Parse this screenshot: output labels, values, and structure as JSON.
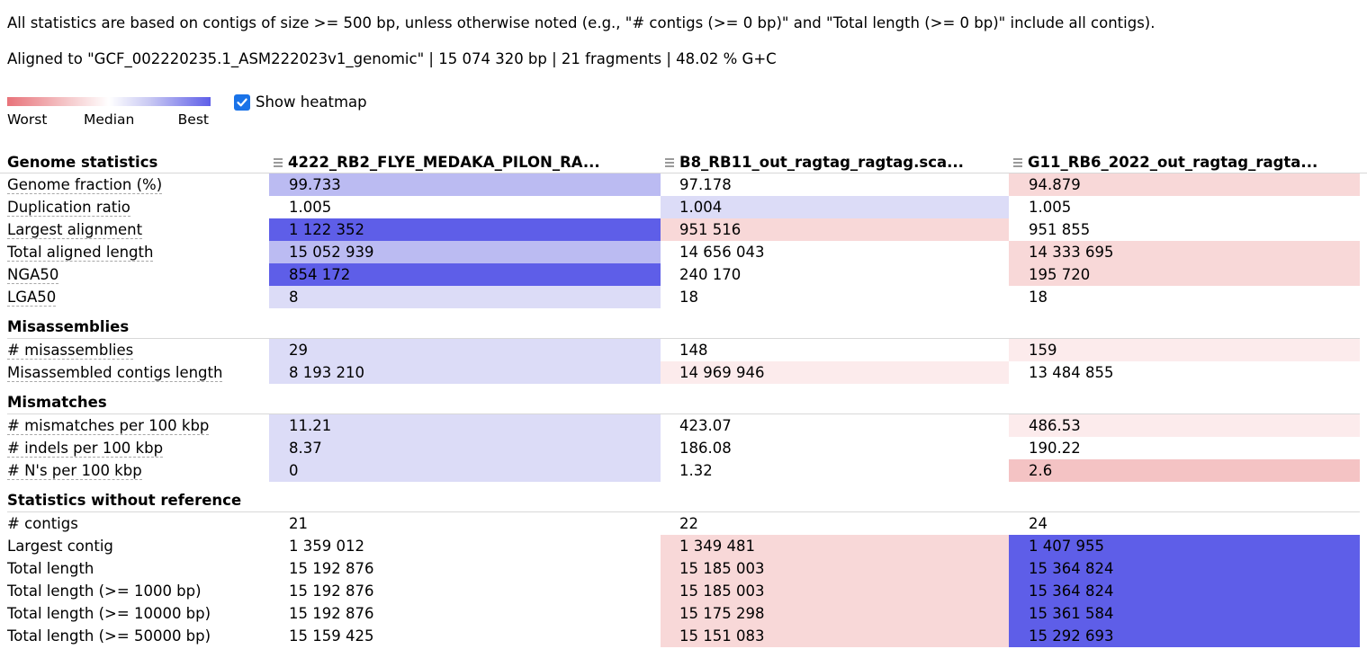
{
  "notes": {
    "stats_note": "All statistics are based on contigs of size >= 500 bp, unless otherwise noted (e.g., \"# contigs (>= 0 bp)\" and \"Total length (>= 0 bp)\" include all contigs).",
    "aligned_to": "Aligned to \"GCF_002220235.1_ASM222023v1_genomic\" | 15 074 320 bp | 21 fragments | 48.02 % G+C"
  },
  "legend": {
    "worst": "Worst",
    "median": "Median",
    "best": "Best"
  },
  "heatmap_toggle": {
    "label": "Show heatmap",
    "checked": true
  },
  "colors": {
    "best": "#5e5ee8",
    "good": "#bbbbf2",
    "light_good": "#dcdcf7",
    "light_bad": "#fcebec",
    "bad": "#f8d8d8",
    "worse": "#f4c3c4",
    "neutral": "#ffffff"
  },
  "columns": [
    "4222_RB2_FLYE_MEDAKA_PILON_RA...",
    "B8_RB11_out_ragtag_ragtag.sca...",
    "G11_RB6_2022_out_ragtag_ragta..."
  ],
  "sections": [
    {
      "title": "Genome statistics",
      "rows": [
        {
          "label": "Genome fraction (%)",
          "values": [
            "99.733",
            "97.178",
            "94.879"
          ],
          "heat": [
            "good",
            "neutral",
            "bad"
          ]
        },
        {
          "label": "Duplication ratio",
          "values": [
            "1.005",
            "1.004",
            "1.005"
          ],
          "heat": [
            "neutral",
            "light_good",
            "neutral"
          ]
        },
        {
          "label": "Largest alignment",
          "values": [
            "1 122 352",
            "951 516",
            "951 855"
          ],
          "heat": [
            "best",
            "bad",
            "neutral"
          ]
        },
        {
          "label": "Total aligned length",
          "values": [
            "15 052 939",
            "14 656 043",
            "14 333 695"
          ],
          "heat": [
            "good",
            "neutral",
            "bad"
          ]
        },
        {
          "label": "NGA50",
          "values": [
            "854 172",
            "240 170",
            "195 720"
          ],
          "heat": [
            "best",
            "neutral",
            "bad"
          ]
        },
        {
          "label": "LGA50",
          "values": [
            "8",
            "18",
            "18"
          ],
          "heat": [
            "light_good",
            "neutral",
            "neutral"
          ]
        }
      ]
    },
    {
      "title": "Misassemblies",
      "rows": [
        {
          "label": "# misassemblies",
          "values": [
            "29",
            "148",
            "159"
          ],
          "heat": [
            "light_good",
            "neutral",
            "light_bad"
          ]
        },
        {
          "label": "Misassembled contigs length",
          "values": [
            "8 193 210",
            "14 969 946",
            "13 484 855"
          ],
          "heat": [
            "light_good",
            "light_bad",
            "neutral"
          ]
        }
      ]
    },
    {
      "title": "Mismatches",
      "rows": [
        {
          "label": "# mismatches per 100 kbp",
          "values": [
            "11.21",
            "423.07",
            "486.53"
          ],
          "heat": [
            "light_good",
            "neutral",
            "light_bad"
          ]
        },
        {
          "label": "# indels per 100 kbp",
          "values": [
            "8.37",
            "186.08",
            "190.22"
          ],
          "heat": [
            "light_good",
            "neutral",
            "neutral"
          ]
        },
        {
          "label": "# N's per 100 kbp",
          "values": [
            "0",
            "1.32",
            "2.6"
          ],
          "heat": [
            "light_good",
            "neutral",
            "worse"
          ]
        }
      ]
    },
    {
      "title": "Statistics without reference",
      "rows": [
        {
          "label": "# contigs",
          "values": [
            "21",
            "22",
            "24"
          ],
          "heat": [
            "neutral",
            "neutral",
            "neutral"
          ],
          "plain": true
        },
        {
          "label": "Largest contig",
          "values": [
            "1 359 012",
            "1 349 481",
            "1 407 955"
          ],
          "heat": [
            "neutral",
            "bad",
            "best"
          ],
          "plain": true
        },
        {
          "label": "Total length",
          "values": [
            "15 192 876",
            "15 185 003",
            "15 364 824"
          ],
          "heat": [
            "neutral",
            "bad",
            "best"
          ],
          "plain": true
        },
        {
          "label": "Total length (>= 1000 bp)",
          "values": [
            "15 192 876",
            "15 185 003",
            "15 364 824"
          ],
          "heat": [
            "neutral",
            "bad",
            "best"
          ],
          "plain": true
        },
        {
          "label": "Total length (>= 10000 bp)",
          "values": [
            "15 192 876",
            "15 175 298",
            "15 361 584"
          ],
          "heat": [
            "neutral",
            "bad",
            "best"
          ],
          "plain": true
        },
        {
          "label": "Total length (>= 50000 bp)",
          "values": [
            "15 159 425",
            "15 151 083",
            "15 292 693"
          ],
          "heat": [
            "neutral",
            "bad",
            "best"
          ],
          "plain": true
        }
      ]
    }
  ]
}
